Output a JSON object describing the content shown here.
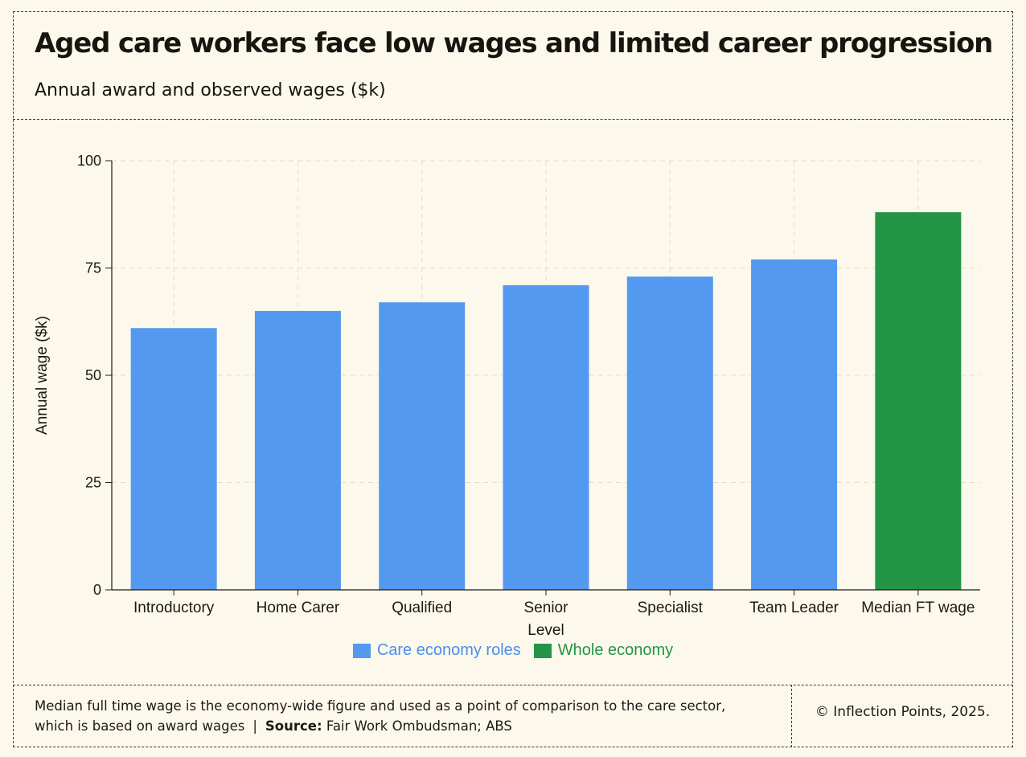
{
  "header": {
    "title": "Aged care workers face low wages and limited career progression",
    "subtitle": "Annual award and observed wages ($k)"
  },
  "chart_data": {
    "type": "bar",
    "categories": [
      "Introductory",
      "Home Carer",
      "Qualified",
      "Senior Level",
      "Specialist",
      "Team Leader",
      "Median FT wage"
    ],
    "values": [
      61,
      65,
      67,
      71,
      73,
      77,
      88
    ],
    "groups": [
      "Care economy roles",
      "Care economy roles",
      "Care economy roles",
      "Care economy roles",
      "Care economy roles",
      "Care economy roles",
      "Whole economy"
    ],
    "ylabel": "Annual wage ($k)",
    "xlabel": "",
    "ylim": [
      0,
      100
    ],
    "yticks": [
      0,
      25,
      50,
      75,
      100
    ],
    "grid": true,
    "legend": {
      "placement": "bottom",
      "entries": [
        {
          "name": "Care economy roles",
          "color": "#5399f0"
        },
        {
          "name": "Whole economy",
          "color": "#249447"
        }
      ]
    }
  },
  "footer": {
    "note": "Median full time wage is the economy-wide figure and used as a point of comparison to the care sector, which is based on award wages",
    "separator": "|",
    "source_label": "Source:",
    "source_text": "Fair Work Ombudsman; ABS",
    "copyright": "© Inflection Points, 2025."
  }
}
